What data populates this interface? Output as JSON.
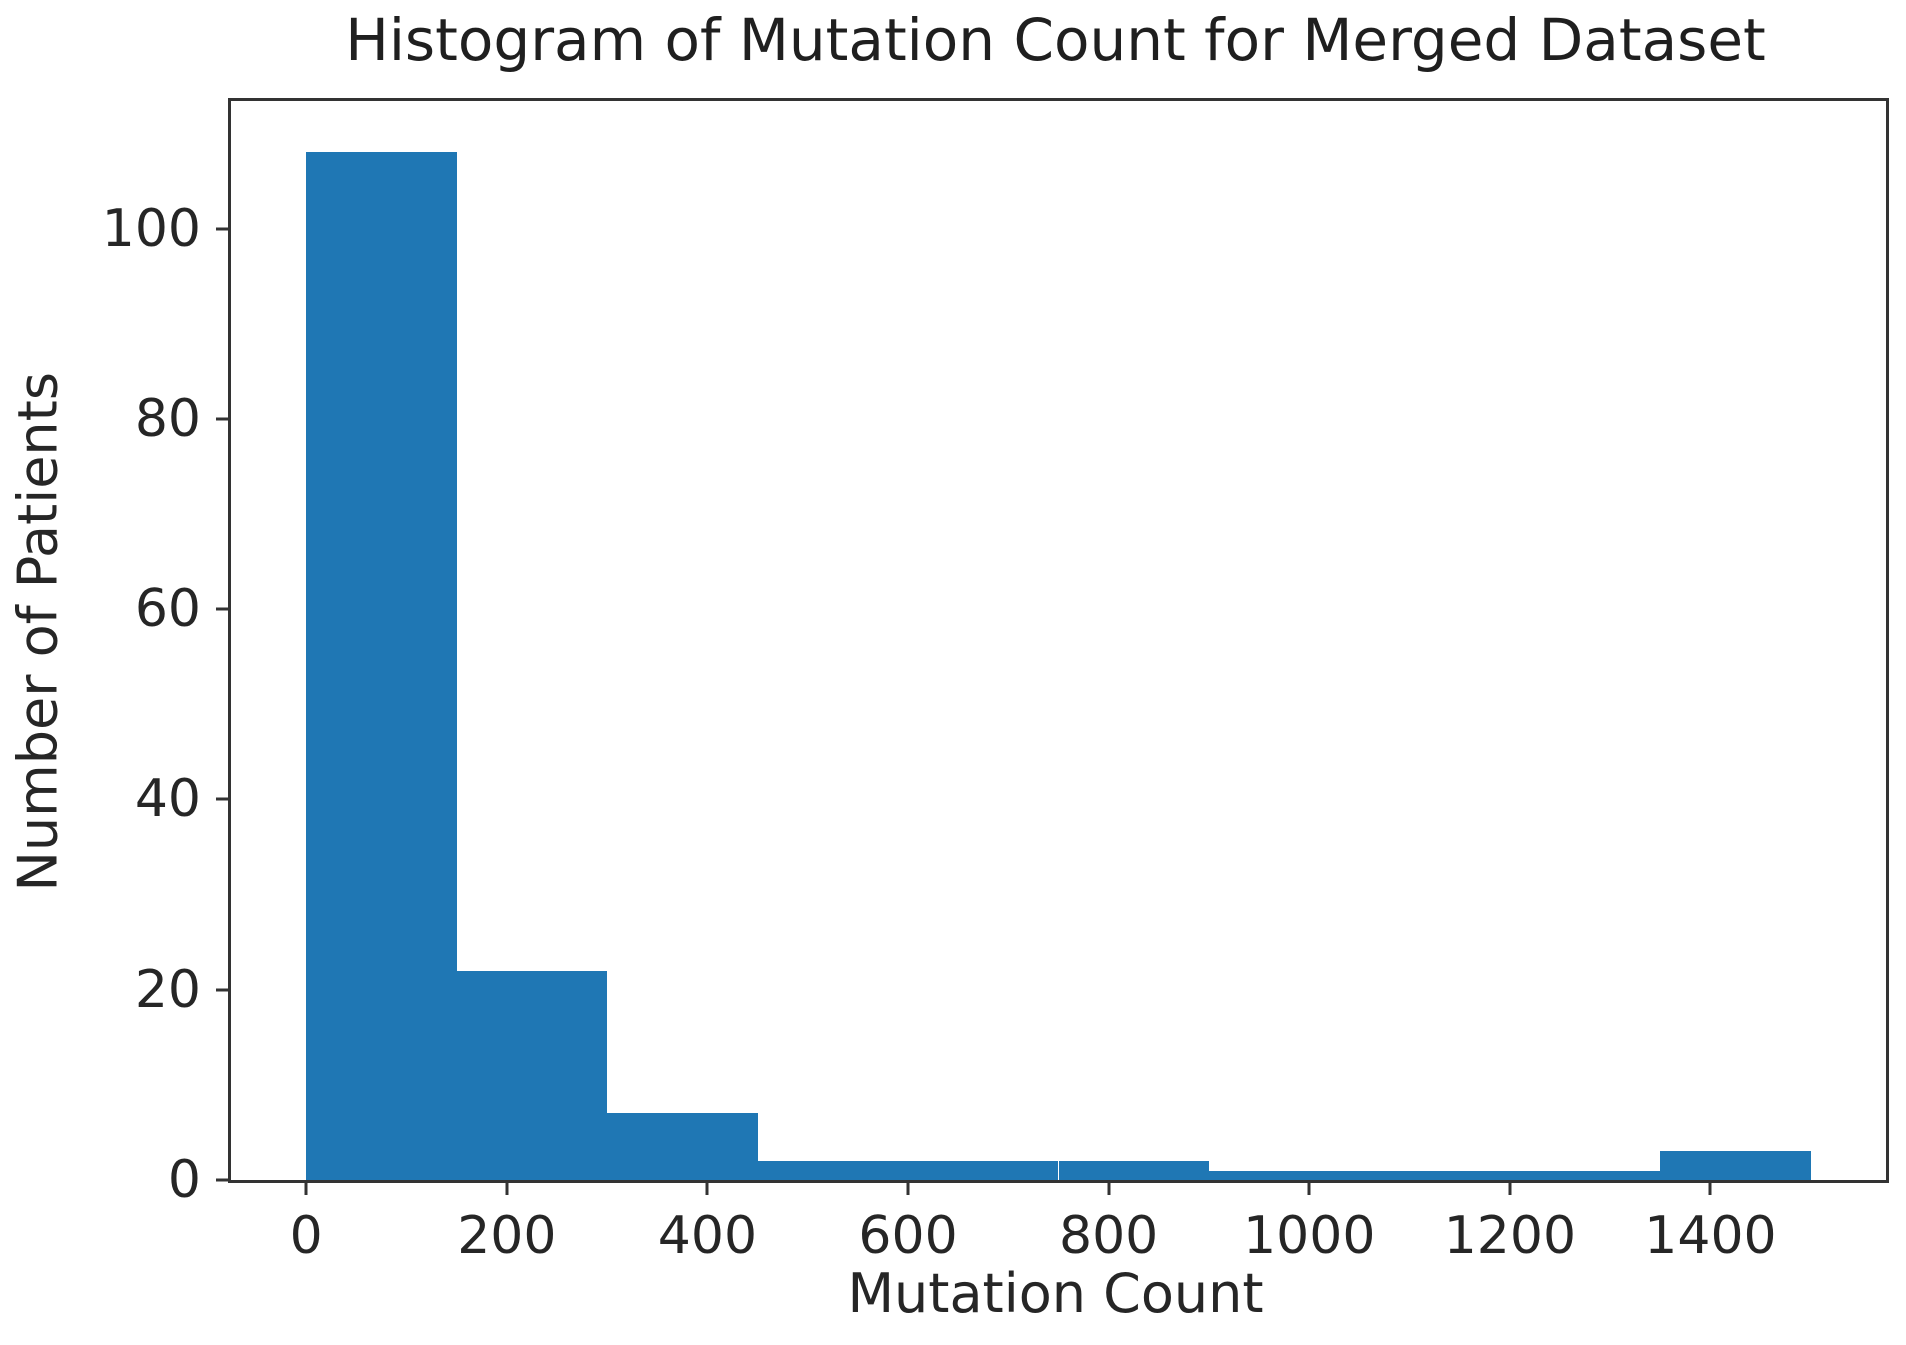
{
  "chart_data": {
    "type": "bar",
    "subtype": "histogram",
    "title": "Histogram of Mutation Count for Merged Dataset",
    "xlabel": "Mutation Count",
    "ylabel": "Number of Patients",
    "bin_edges": [
      0,
      150,
      300,
      450,
      600,
      750,
      900,
      1050,
      1200,
      1350,
      1500
    ],
    "counts": [
      108,
      22,
      7,
      2,
      2,
      2,
      1,
      1,
      1,
      3
    ],
    "xticks": [
      0,
      200,
      400,
      600,
      800,
      1000,
      1200,
      1400
    ],
    "yticks": [
      0,
      20,
      40,
      60,
      80,
      100
    ],
    "xlim": [
      -75,
      1575
    ],
    "ylim": [
      0,
      113.4
    ],
    "bar_color": "#1f77b4",
    "axis_color": "#333333",
    "text_color": "#262626",
    "grid": "off",
    "legend": "none"
  }
}
